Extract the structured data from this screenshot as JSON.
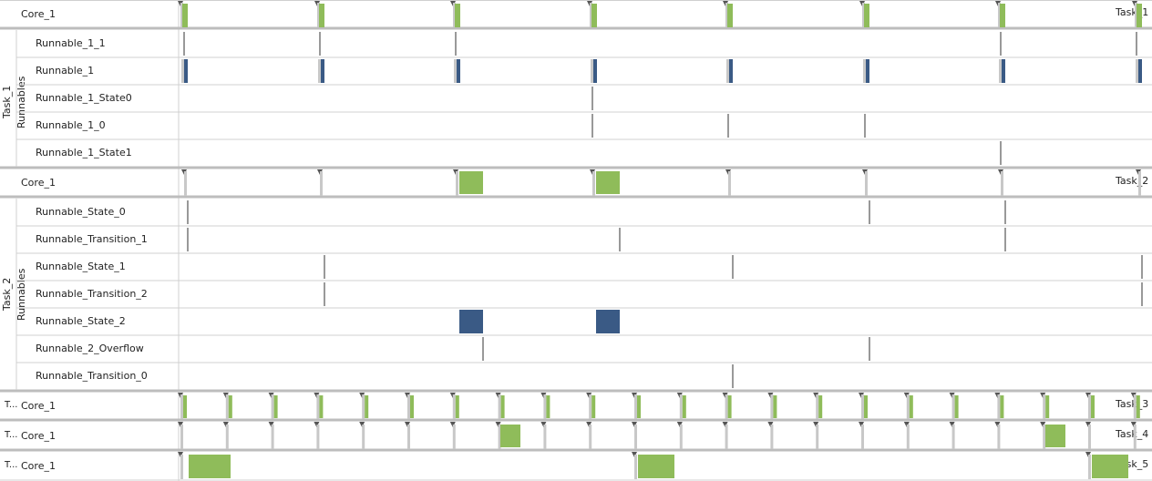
{
  "timeline": {
    "total_units": 1062,
    "origin_x": 198
  },
  "groups": [
    {
      "task": "Task_1",
      "header": {
        "label": "Core_1",
        "task_tag": "Task_1"
      },
      "runnables_label": "Runnables",
      "rows": [
        {
          "label": "Runnable_1_1"
        },
        {
          "label": "Runnable_1"
        },
        {
          "label": "Runnable_1_State0"
        },
        {
          "label": "Runnable_1_0"
        },
        {
          "label": "Runnable_1_State1"
        }
      ]
    },
    {
      "task": "Task_2",
      "header": {
        "label": "Core_1",
        "task_tag": "Task_2"
      },
      "runnables_label": "Runnables",
      "rows": [
        {
          "label": "Runnable_State_0"
        },
        {
          "label": "Runnable_Transition_1"
        },
        {
          "label": "Runnable_State_1"
        },
        {
          "label": "Runnable_Transition_2"
        },
        {
          "label": "Runnable_State_2"
        },
        {
          "label": "Runnable_2_Overflow"
        },
        {
          "label": "Runnable_Transition_0"
        }
      ]
    },
    {
      "task": "T...",
      "header": {
        "label": "Core_1",
        "task_tag": "Task_3"
      }
    },
    {
      "task": "T...",
      "header": {
        "label": "Core_1",
        "task_tag": "Task_4"
      }
    },
    {
      "task": "T...",
      "header": {
        "label": "Core_1",
        "task_tag": "Task_5"
      }
    }
  ],
  "colors": {
    "exec_green": "#8fbc5a",
    "runnable_blue": "#3a5a85",
    "marker": "#555555",
    "grid": "#d0d0d0"
  }
}
